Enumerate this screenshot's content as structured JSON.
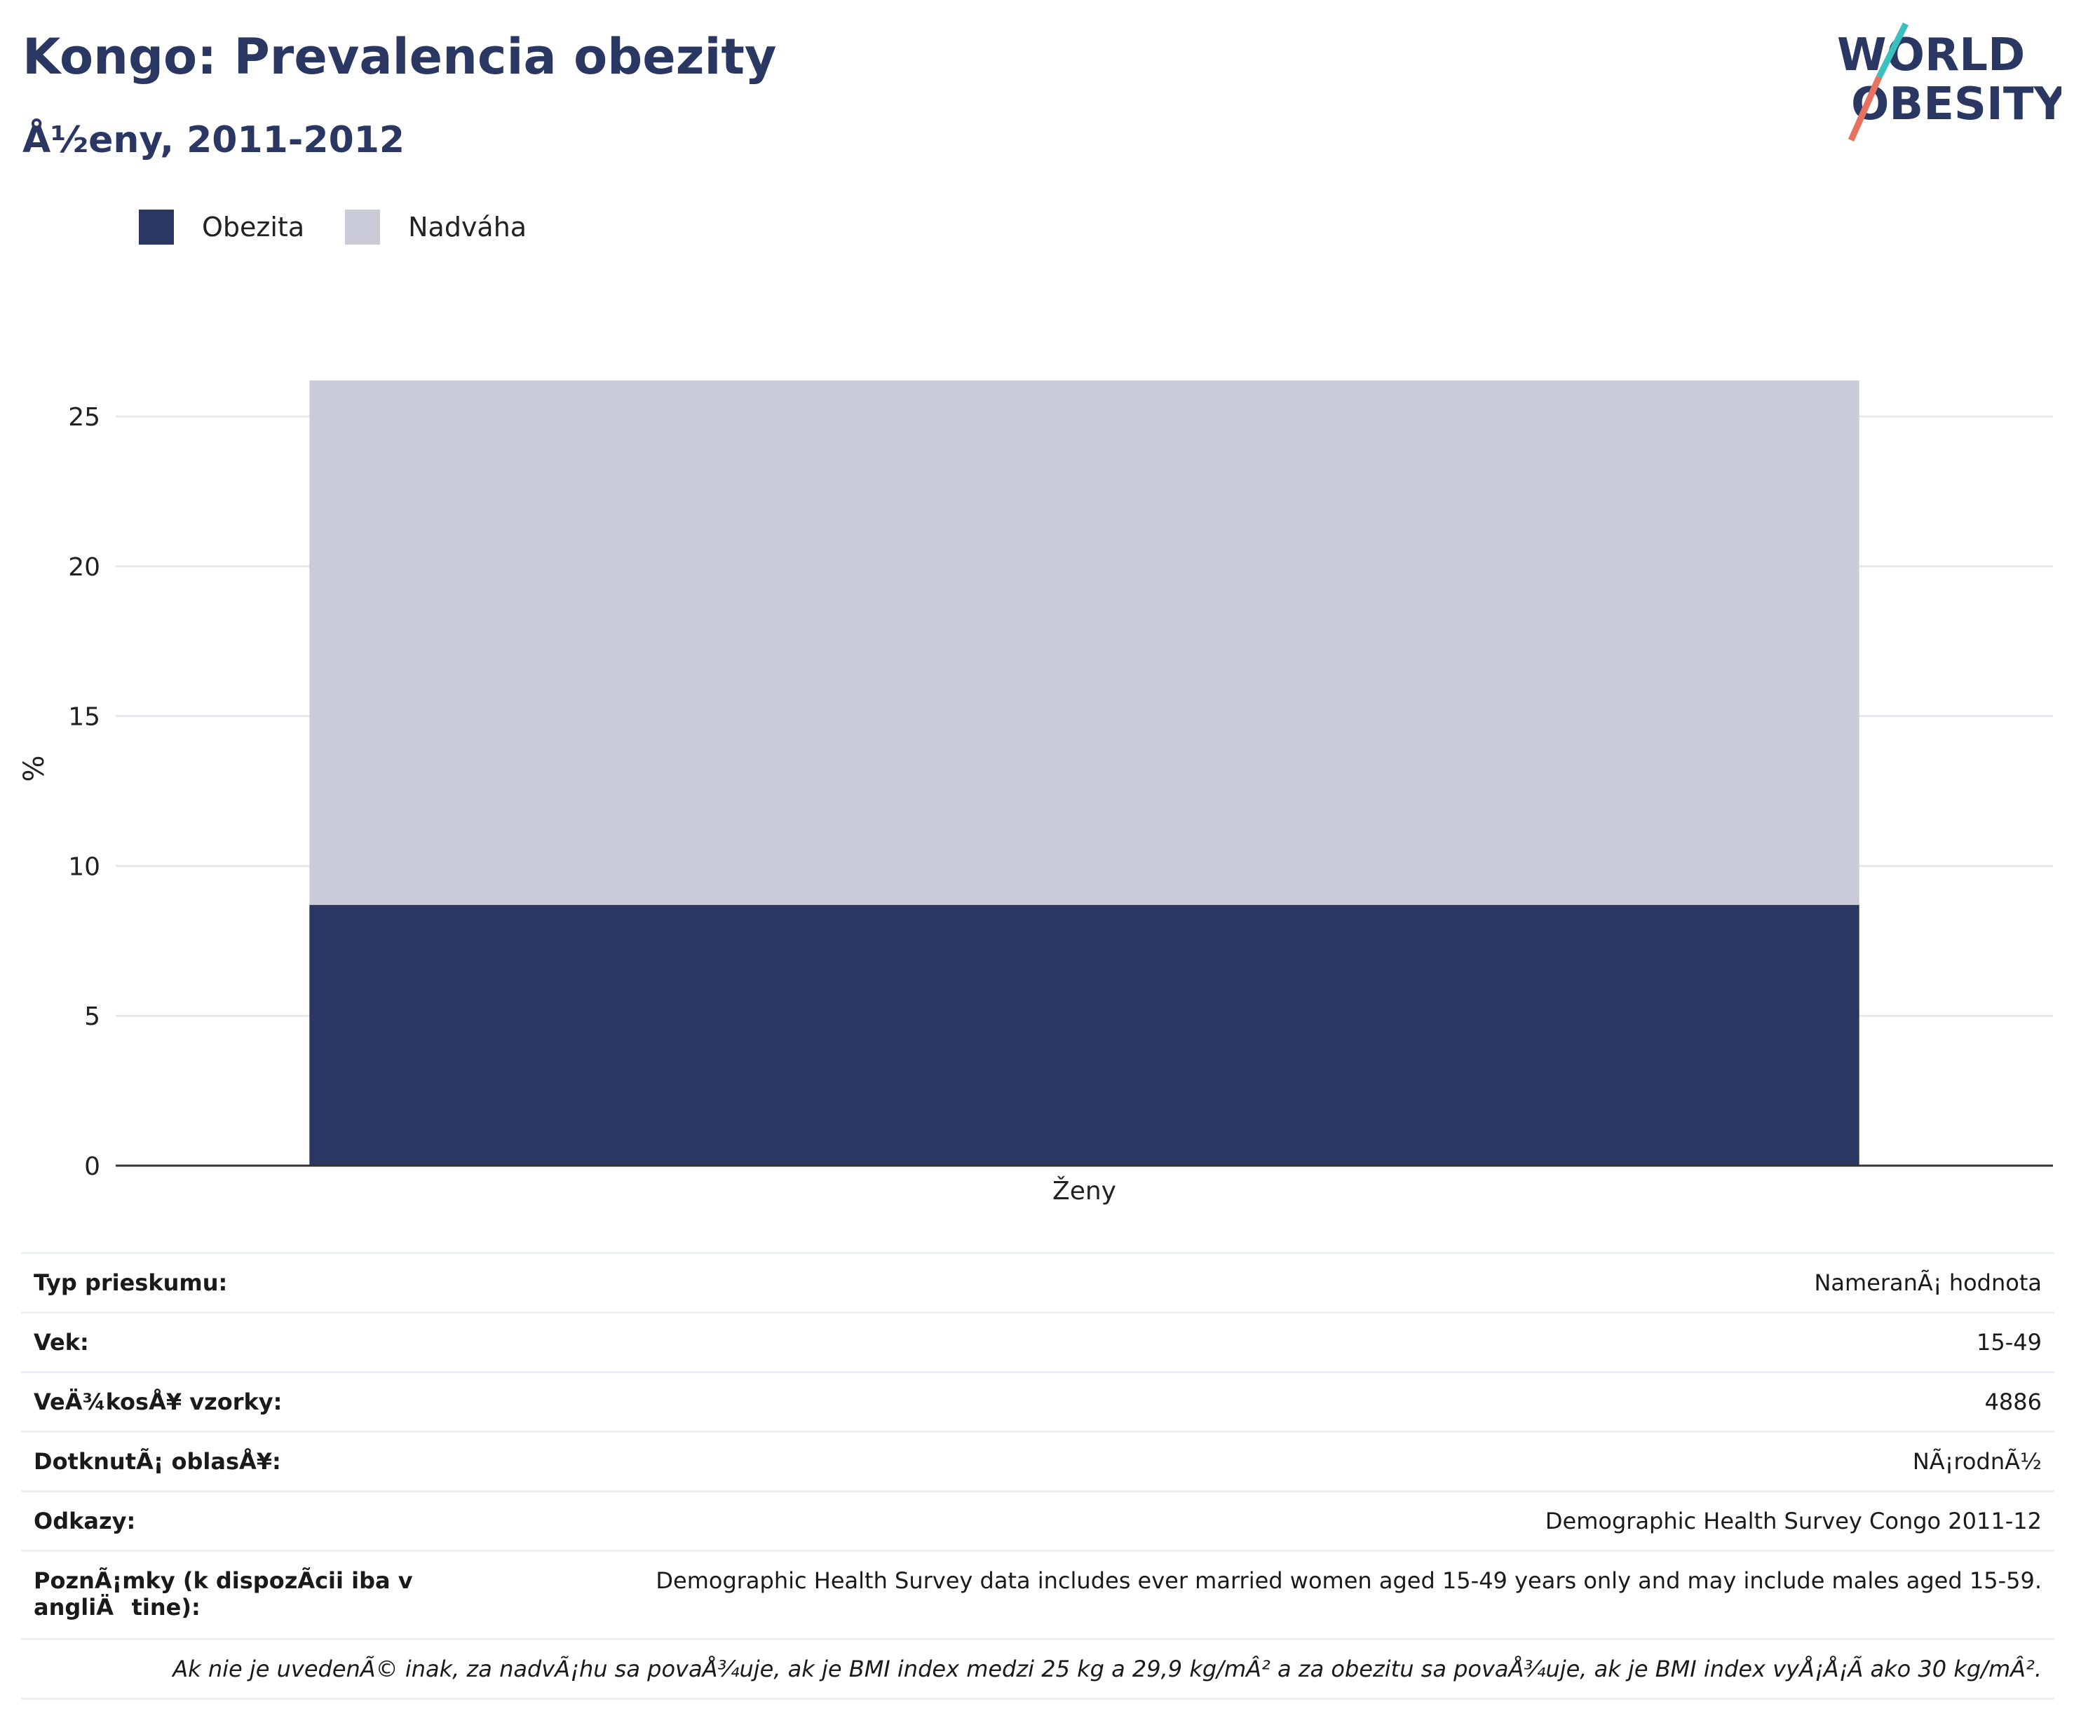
{
  "title": "Kongo: Prevalencia obezity",
  "subtitle": "Å½eny, 2011-2012",
  "logo": {
    "line1": "WORLD",
    "line2": "OBESITY"
  },
  "colors": {
    "obesity": "#2a3763",
    "overweight": "#c9ccd8",
    "title": "#2a3763",
    "grid": "#e6e7ee",
    "axis": "#333333"
  },
  "chart_data": {
    "type": "bar",
    "stacked": true,
    "categories": [
      "Ženy"
    ],
    "series": [
      {
        "name": "Obezita",
        "values": [
          8.7
        ],
        "color": "#2a3763"
      },
      {
        "name": "Nadváha",
        "values": [
          17.5
        ],
        "color": "#c9ccd8"
      }
    ],
    "ylabel": "%",
    "xlabel": "",
    "ylim": [
      0,
      26.5
    ],
    "yticks": [
      0,
      5,
      10,
      15,
      20,
      25
    ],
    "legend_position": "top-left",
    "grid": true
  },
  "info": [
    {
      "key": "Typ prieskumu:",
      "value": "NameranÃ¡ hodnota"
    },
    {
      "key": "Vek:",
      "value": "15-49"
    },
    {
      "key": "VeÄ¾kosÅ¥ vzorky:",
      "value": "4886"
    },
    {
      "key": "DotknutÃ¡ oblasÅ¥:",
      "value": "NÃ¡rodnÃ½"
    },
    {
      "key": "Odkazy:",
      "value": "Demographic Health Survey Congo 2011-12"
    },
    {
      "key": "PoznÃ¡mky (k dispozÃ­cii iba v angliÄtine):",
      "value": "Demographic Health Survey data includes ever married women aged 15-49 years only and may include males aged 15-59."
    }
  ],
  "footnote": "Ak nie je uvedenÃ© inak, za nadvÃ¡hu sa povaÅ¾uje, ak je BMI index medzi 25 kg a 29,9 kg/mÂ² a za obezitu sa povaÅ¾uje, ak je BMI index vyÅ¡Å¡Ã­ ako 30 kg/mÂ²."
}
